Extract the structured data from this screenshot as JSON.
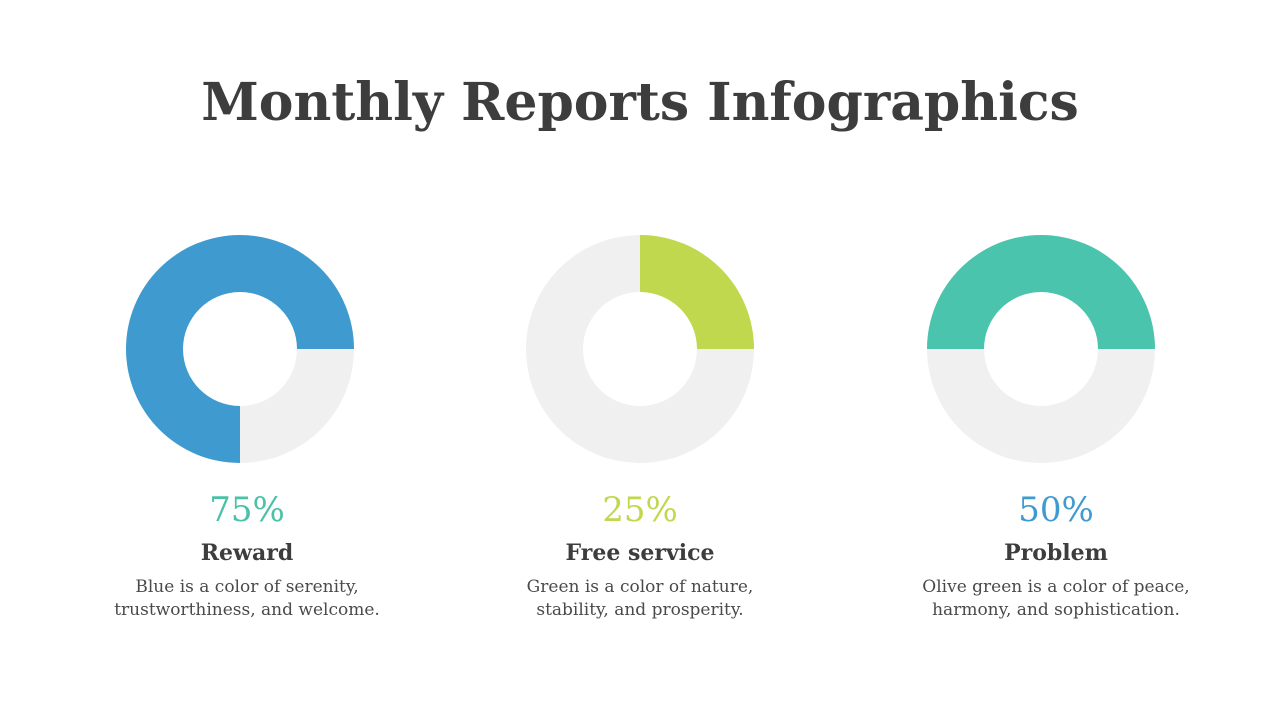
{
  "title": "Monthly Reports Infographics",
  "chart_data": [
    {
      "type": "pie",
      "variant": "donut",
      "value": 75,
      "value_label": "75%",
      "label": "Reward",
      "description": "Blue is a color of serenity, trustworthiness, and welcome.",
      "color": "#3f9bcf",
      "label_color": "#4bc1a8",
      "track_color": "#f0f0f0"
    },
    {
      "type": "pie",
      "variant": "donut",
      "value": 25,
      "value_label": "25%",
      "label": "Free service",
      "description": "Green is a color of nature, stability, and prosperity.",
      "color": "#c0d84e",
      "label_color": "#c0d84e",
      "track_color": "#f0f0f0"
    },
    {
      "type": "pie",
      "variant": "donut",
      "value": 50,
      "value_label": "50%",
      "label": "Problem",
      "description": "Olive green is a color of peace, harmony, and sophistication.",
      "color": "#4bc4ad",
      "label_color": "#3f9bcf",
      "track_color": "#f0f0f0"
    }
  ]
}
